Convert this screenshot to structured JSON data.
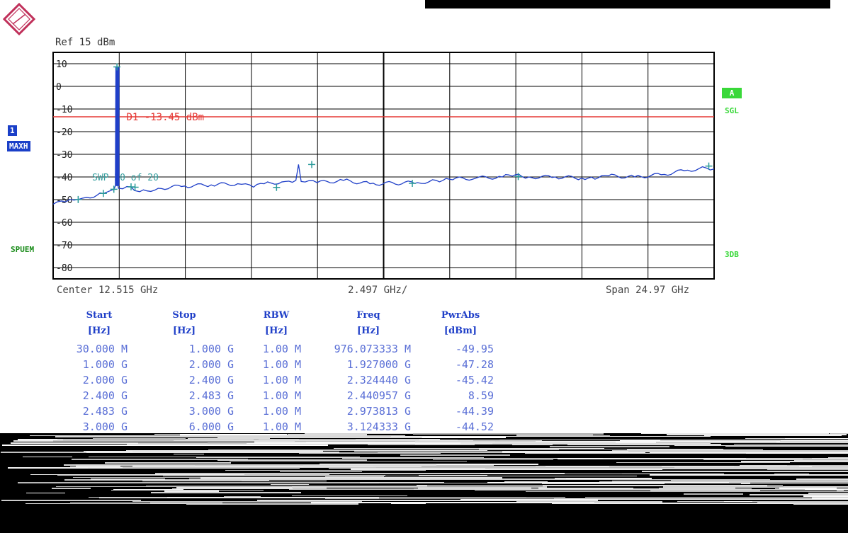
{
  "header": {
    "ref_label": "Ref  15 dBm"
  },
  "side_labels": {
    "trace_number": "1",
    "detector": "MAXH",
    "mode": "SPUEM",
    "trace_flag": "A",
    "sweep_mode": "SGL",
    "bandwidth": "3DB"
  },
  "chart_data": {
    "type": "line",
    "x_unit": "GHz",
    "y_unit": "dBm",
    "xlim": [
      0.03,
      25.0
    ],
    "ylim": [
      -85,
      15
    ],
    "y_ticks": [
      10,
      0,
      -10,
      -20,
      -30,
      -40,
      -50,
      -60,
      -70,
      -80
    ],
    "y_tick_labels": [
      "10",
      "0",
      "-10",
      "-20",
      "-30",
      "-40",
      "-50",
      "-60",
      "-70",
      "-80"
    ],
    "grid": true,
    "limit_line": {
      "label": "D1 -13.45 dBm",
      "value": -13.45,
      "color": "#e53935"
    },
    "sweep_label": "SWP     20 of     20",
    "series": [
      {
        "color": "#1f3fc8",
        "x": [
          0.03,
          0.5,
          0.976,
          1.3,
          1.927,
          2.1,
          2.324,
          2.38,
          2.4,
          2.44,
          2.48,
          2.5,
          2.973,
          3.1,
          3.3,
          4.0,
          5.0,
          6.0,
          7.0,
          7.6,
          8.0,
          8.8,
          9.2,
          9.3,
          9.4,
          10.0,
          11.0,
          12.0,
          13.8,
          14.5,
          15.0,
          16.0,
          17.0,
          17.5,
          18.0,
          19.0,
          20.0,
          20.5,
          21.0,
          22.0,
          23.0,
          24.0,
          24.7,
          25.0
        ],
        "y": [
          -52,
          -51,
          -49.95,
          -49,
          -47.28,
          -46.5,
          -45.42,
          -44,
          8.59,
          8.59,
          -44,
          -45,
          -44.39,
          -46,
          -46.5,
          -45,
          -44,
          -43.5,
          -43,
          -44.5,
          -43,
          -42,
          -41.5,
          -34.5,
          -42,
          -42.5,
          -41.5,
          -43,
          -42.5,
          -41.5,
          -41,
          -40.5,
          -40,
          -39,
          -40,
          -40,
          -40.5,
          -41,
          -39.5,
          -40,
          -39,
          -37,
          -36,
          -36.5
        ]
      }
    ],
    "markers": [
      {
        "x": 0.976,
        "y": -49.95
      },
      {
        "x": 1.927,
        "y": -47.28
      },
      {
        "x": 2.324,
        "y": -45.42
      },
      {
        "x": 2.440957,
        "y": 8.59
      },
      {
        "x": 2.973813,
        "y": -44.39
      },
      {
        "x": 3.124333,
        "y": -44.52
      },
      {
        "x": 8.47,
        "y": -44.6
      },
      {
        "x": 9.8,
        "y": -34.5
      },
      {
        "x": 13.6,
        "y": -42.8
      },
      {
        "x": 17.6,
        "y": -39.8
      },
      {
        "x": 24.8,
        "y": -35.2
      }
    ]
  },
  "axis_labels": {
    "center": "Center 12.515 GHz",
    "per_div": "2.497 GHz/",
    "span": "Span 24.97 GHz"
  },
  "table": {
    "headers": [
      "Start",
      "Stop",
      "RBW",
      "Freq",
      "PwrAbs"
    ],
    "units": [
      "[Hz]",
      "[Hz]",
      "[Hz]",
      "[Hz]",
      "[dBm]"
    ],
    "rows": [
      [
        "30.000 M",
        "1.000 G",
        "1.00 M",
        "976.073333 M",
        "-49.95"
      ],
      [
        "1.000 G",
        "2.000 G",
        "1.00 M",
        "1.927000 G",
        "-47.28"
      ],
      [
        "2.000 G",
        "2.400 G",
        "1.00 M",
        "2.324440 G",
        "-45.42"
      ],
      [
        "2.400 G",
        "2.483 G",
        "1.00 M",
        "2.440957 G",
        "8.59"
      ],
      [
        "2.483 G",
        "3.000 G",
        "1.00 M",
        "2.973813 G",
        "-44.39"
      ],
      [
        "3.000 G",
        "6.000 G",
        "1.00 M",
        "3.124333 G",
        "-44.52"
      ]
    ]
  }
}
